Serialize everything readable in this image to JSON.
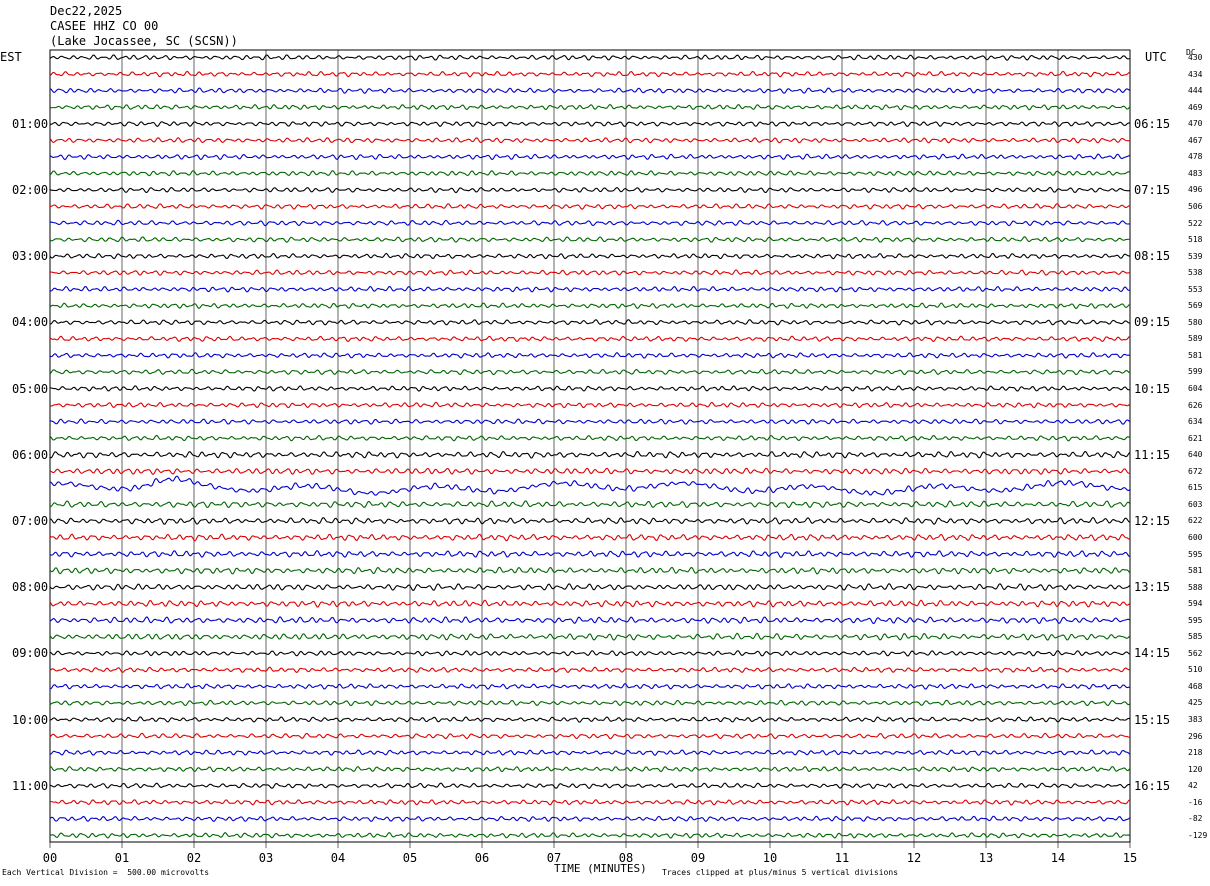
{
  "header": {
    "date": "Dec22,2025",
    "station": "CASEE HHZ CO 00",
    "location": "(Lake Jocassee, SC (SCSN))"
  },
  "left_tz": "EST",
  "right_tz": "UTC",
  "dc_label": "DC",
  "footer": {
    "xlabel": "TIME (MINUTES)",
    "scale_note": "Each Vertical Division =  500.00 microvolts",
    "clip_note": "Traces clipped at plus/minus 5 vertical divisions"
  },
  "chart_data": {
    "type": "line",
    "title": "CASEE HHZ CO 00",
    "xlabel": "TIME (MINUTES)",
    "xlim": [
      0,
      15
    ],
    "x_ticks": [
      "00",
      "01",
      "02",
      "03",
      "04",
      "05",
      "06",
      "07",
      "08",
      "09",
      "10",
      "11",
      "12",
      "13",
      "14",
      "15"
    ],
    "left_hour_labels": [
      "01:00",
      "02:00",
      "03:00",
      "04:00",
      "05:00",
      "06:00",
      "07:00",
      "08:00",
      "09:00",
      "10:00",
      "11:00"
    ],
    "right_hour_labels": [
      "06:15",
      "07:15",
      "08:15",
      "09:15",
      "10:15",
      "11:15",
      "12:15",
      "13:15",
      "14:15",
      "15:15",
      "16:15"
    ],
    "trace_colors": [
      "#000000",
      "#dd0000",
      "#0000cc",
      "#006600"
    ],
    "dc_offsets": [
      430,
      434,
      444,
      469,
      470,
      467,
      478,
      483,
      496,
      506,
      522,
      518,
      539,
      538,
      553,
      569,
      580,
      589,
      581,
      599,
      604,
      626,
      634,
      621,
      640,
      672,
      615,
      603,
      622,
      600,
      595,
      581,
      588,
      594,
      595,
      585,
      562,
      510,
      468,
      425,
      383,
      296,
      218,
      120,
      42,
      -16,
      -82,
      -129
    ],
    "traces_per_hour": 4,
    "minutes_per_trace": 15,
    "vertical_division_microvolts": 500.0,
    "clip_divisions": 5
  }
}
